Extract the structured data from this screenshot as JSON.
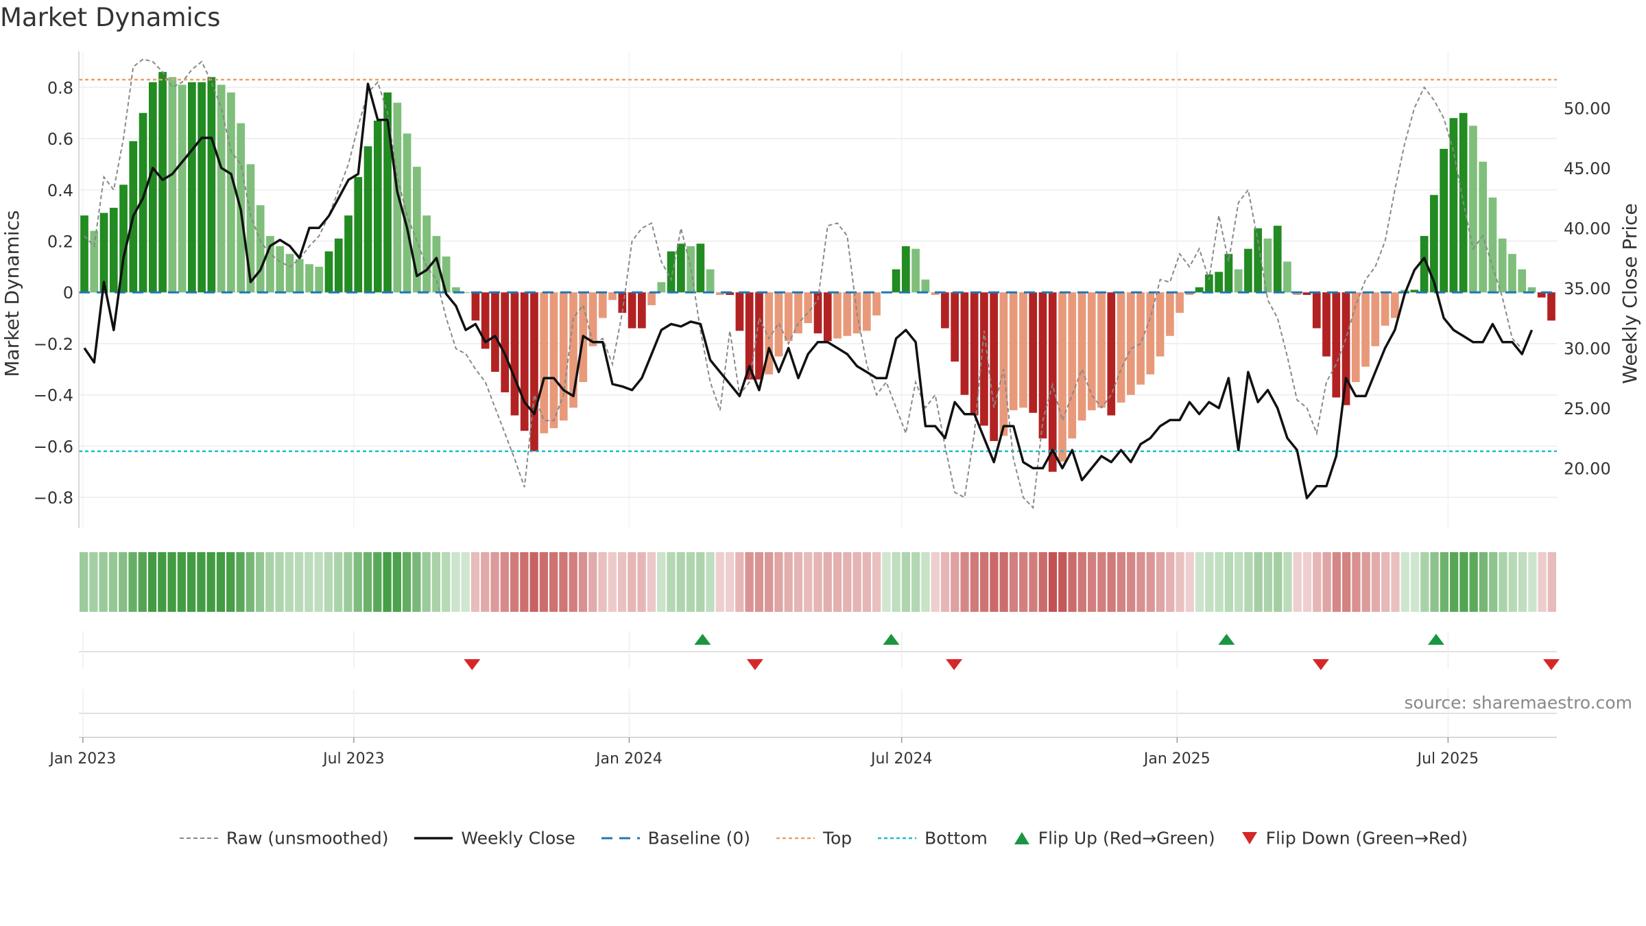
{
  "chart_data": {
    "type": "bar",
    "title": "Market Dynamics",
    "source": "source: sharemaestro.com",
    "ylabel": "Market Dynamics",
    "y2label": "Weekly Close Price",
    "ylim": [
      -0.92,
      0.94
    ],
    "y2lim": [
      15.0,
      54.7
    ],
    "yticks": [
      -0.8,
      -0.6,
      -0.4,
      -0.2,
      0,
      0.2,
      0.4,
      0.6,
      0.8
    ],
    "y2ticks": [
      20,
      25,
      30,
      35,
      40,
      45,
      50
    ],
    "x_start": "2023-01-02",
    "x_end": "2025-09-08",
    "xticks": [
      {
        "date": "2023-01-01",
        "label": "Jan 2023"
      },
      {
        "date": "2023-07-01",
        "label": "Jul 2023"
      },
      {
        "date": "2024-01-01",
        "label": "Jan 2024"
      },
      {
        "date": "2024-07-01",
        "label": "Jul 2024"
      },
      {
        "date": "2025-01-01",
        "label": "Jan 2025"
      },
      {
        "date": "2025-07-01",
        "label": "Jul 2025"
      }
    ],
    "top_level": 0.83,
    "bottom_level": -0.62,
    "baseline": 0,
    "series": [
      {
        "name": "Market Dynamics",
        "values": [
          0.3,
          0.24,
          0.31,
          0.33,
          0.42,
          0.59,
          0.7,
          0.82,
          0.86,
          0.84,
          0.81,
          0.82,
          0.82,
          0.84,
          0.81,
          0.78,
          0.66,
          0.5,
          0.34,
          0.22,
          0.18,
          0.15,
          0.13,
          0.11,
          0.1,
          0.16,
          0.21,
          0.3,
          0.45,
          0.57,
          0.67,
          0.78,
          0.74,
          0.62,
          0.49,
          0.3,
          0.22,
          0.14,
          0.02,
          0.0,
          -0.11,
          -0.22,
          -0.31,
          -0.39,
          -0.48,
          -0.54,
          -0.62,
          -0.55,
          -0.53,
          -0.5,
          -0.45,
          -0.35,
          -0.21,
          -0.1,
          -0.03,
          -0.08,
          -0.14,
          -0.14,
          -0.05,
          0.04,
          0.16,
          0.19,
          0.18,
          0.19,
          0.09,
          -0.01,
          -0.01,
          -0.15,
          -0.34,
          -0.34,
          -0.32,
          -0.25,
          -0.19,
          -0.16,
          -0.12,
          -0.16,
          -0.19,
          -0.18,
          -0.17,
          -0.16,
          -0.15,
          -0.09,
          0.0,
          0.09,
          0.18,
          0.17,
          0.05,
          -0.01,
          -0.14,
          -0.27,
          -0.4,
          -0.48,
          -0.52,
          -0.58,
          -0.56,
          -0.46,
          -0.45,
          -0.47,
          -0.57,
          -0.7,
          -0.66,
          -0.57,
          -0.5,
          -0.46,
          -0.45,
          -0.48,
          -0.43,
          -0.4,
          -0.36,
          -0.32,
          -0.25,
          -0.17,
          -0.08,
          -0.01,
          0.02,
          0.07,
          0.08,
          0.15,
          0.09,
          0.17,
          0.25,
          0.21,
          0.26,
          0.12,
          -0.01,
          -0.01,
          -0.14,
          -0.25,
          -0.41,
          -0.44,
          -0.35,
          -0.29,
          -0.21,
          -0.13,
          -0.1,
          0.01,
          0.01,
          0.22,
          0.38,
          0.56,
          0.68,
          0.7,
          0.65,
          0.51,
          0.37,
          0.21,
          0.15,
          0.09,
          0.02,
          -0.02,
          -0.11
        ]
      },
      {
        "name": "Raw (unsmoothed)",
        "values": [
          0.22,
          0.18,
          0.45,
          0.4,
          0.6,
          0.88,
          0.91,
          0.9,
          0.86,
          0.8,
          0.82,
          0.87,
          0.9,
          0.82,
          0.72,
          0.55,
          0.5,
          0.3,
          0.2,
          0.15,
          0.12,
          0.1,
          0.13,
          0.18,
          0.22,
          0.3,
          0.4,
          0.5,
          0.65,
          0.78,
          0.82,
          0.7,
          0.45,
          0.3,
          0.2,
          0.1,
          0.05,
          -0.1,
          -0.22,
          -0.24,
          -0.3,
          -0.35,
          -0.45,
          -0.55,
          -0.65,
          -0.76,
          -0.4,
          -0.5,
          -0.5,
          -0.4,
          -0.1,
          -0.05,
          -0.2,
          -0.18,
          -0.28,
          -0.08,
          0.2,
          0.25,
          0.27,
          0.12,
          0.05,
          0.25,
          0.1,
          -0.15,
          -0.35,
          -0.46,
          -0.15,
          -0.4,
          -0.35,
          -0.1,
          -0.18,
          -0.12,
          -0.2,
          -0.12,
          -0.08,
          -0.03,
          0.26,
          0.27,
          0.22,
          -0.08,
          -0.28,
          -0.4,
          -0.35,
          -0.45,
          -0.55,
          -0.35,
          -0.45,
          -0.4,
          -0.6,
          -0.78,
          -0.8,
          -0.55,
          -0.15,
          -0.45,
          -0.3,
          -0.65,
          -0.8,
          -0.84,
          -0.5,
          -0.36,
          -0.5,
          -0.4,
          -0.3,
          -0.4,
          -0.45,
          -0.4,
          -0.3,
          -0.22,
          -0.2,
          -0.1,
          0.05,
          0.04,
          0.15,
          0.1,
          0.17,
          0.05,
          0.3,
          0.12,
          0.35,
          0.4,
          0.2,
          -0.03,
          -0.1,
          -0.25,
          -0.42,
          -0.45,
          -0.55,
          -0.35,
          -0.28,
          -0.18,
          -0.05,
          0.05,
          0.1,
          0.2,
          0.4,
          0.58,
          0.72,
          0.8,
          0.75,
          0.68,
          0.55,
          0.35,
          0.17,
          0.22,
          0.1,
          -0.02,
          -0.18,
          -0.22
        ]
      },
      {
        "name": "Weekly Close",
        "values": [
          30.0,
          28.8,
          35.5,
          31.5,
          37.5,
          41.0,
          42.5,
          45.0,
          44.0,
          44.5,
          45.5,
          46.5,
          47.5,
          47.5,
          45.0,
          44.5,
          41.5,
          35.5,
          36.5,
          38.5,
          39.0,
          38.5,
          37.5,
          40.0,
          40.0,
          41.0,
          42.5,
          44.0,
          44.5,
          52.0,
          49.0,
          49.0,
          43.0,
          40.0,
          36.0,
          36.5,
          37.5,
          34.5,
          33.5,
          31.5,
          32.0,
          30.5,
          31.0,
          29.5,
          27.5,
          25.5,
          24.5,
          27.5,
          27.5,
          26.5,
          26.0,
          31.0,
          30.5,
          30.5,
          27.0,
          26.8,
          26.5,
          27.5,
          29.5,
          31.5,
          32.0,
          31.8,
          32.2,
          32.0,
          29.0,
          28.0,
          27.0,
          26.0,
          28.5,
          26.5,
          30.0,
          28.0,
          30.0,
          27.5,
          29.5,
          30.5,
          30.5,
          30.0,
          29.5,
          28.5,
          28.0,
          27.5,
          27.5,
          30.8,
          31.5,
          30.5,
          23.5,
          23.5,
          22.5,
          25.5,
          24.5,
          24.5,
          22.5,
          20.5,
          23.5,
          23.5,
          20.5,
          20.0,
          20.0,
          21.5,
          20.0,
          21.5,
          19.0,
          20.0,
          21.0,
          20.5,
          21.5,
          20.5,
          22.0,
          22.5,
          23.5,
          24.0,
          24.0,
          25.5,
          24.5,
          25.5,
          25.0,
          27.5,
          21.5,
          28.0,
          25.5,
          26.5,
          25.0,
          22.5,
          21.5,
          17.5,
          18.5,
          18.5,
          21.0,
          27.5,
          26.0,
          26.0,
          28.0,
          30.0,
          31.5,
          34.5,
          36.5,
          37.5,
          35.5,
          32.5,
          31.5,
          31.0,
          30.5,
          30.5,
          32.0,
          30.5,
          30.5,
          29.5,
          31.5
        ]
      }
    ],
    "flips_up": [
      "2024-02-19",
      "2024-06-24",
      "2025-02-03",
      "2025-06-23"
    ],
    "flips_down": [
      "2023-09-18",
      "2024-03-25",
      "2024-08-05",
      "2025-04-07",
      "2025-09-08"
    ],
    "legend": {
      "raw": "Raw (unsmoothed)",
      "close": "Weekly Close",
      "baseline": "Baseline (0)",
      "top": "Top",
      "bottom": "Bottom",
      "flip_up": "Flip Up (Red→Green)",
      "flip_down": "Flip Down (Green→Red)"
    },
    "legend_placement": "bottom",
    "grid": true,
    "colors": {
      "up_strong": "#228b22",
      "up_weak": "#7fbf7b",
      "down_strong": "#b22222",
      "down_weak": "#e8997a",
      "close": "#111111",
      "raw": "#888888",
      "baseline": "#1f77b4",
      "top": "#e8a06a",
      "bottom": "#17becf",
      "flip_up": "#1a9641",
      "flip_down": "#d62728"
    }
  }
}
